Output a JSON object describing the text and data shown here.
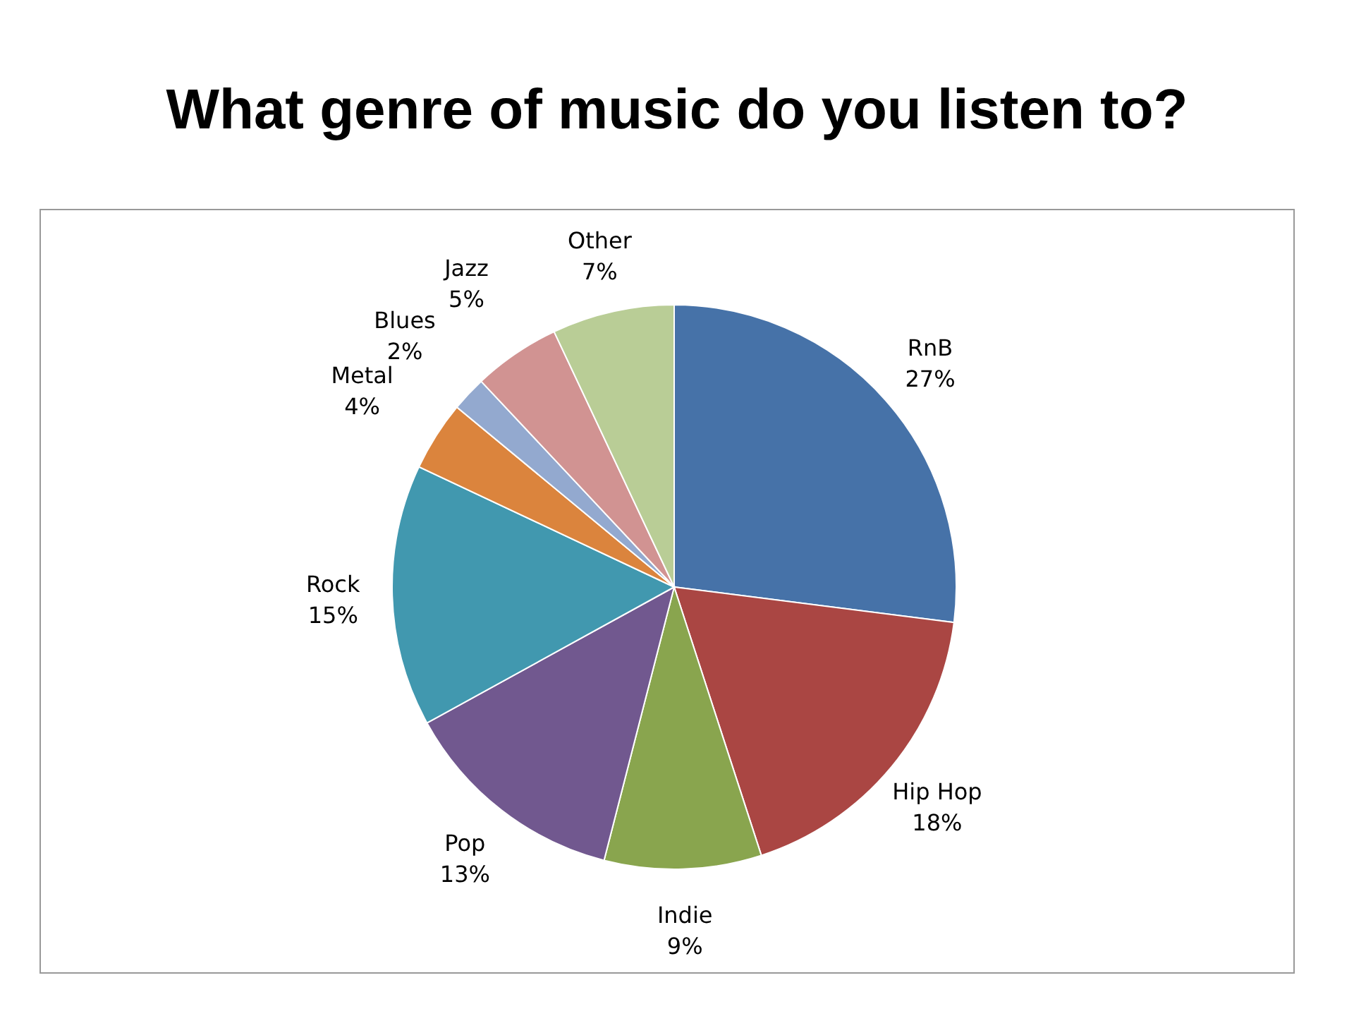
{
  "chart_data": {
    "type": "pie",
    "title": "What genre of music do you listen to?",
    "categories": [
      "RnB",
      "Hip Hop",
      "Indie",
      "Pop",
      "Rock",
      "Metal",
      "Blues",
      "Jazz",
      "Other"
    ],
    "values": [
      27,
      18,
      9,
      13,
      15,
      4,
      2,
      5,
      7
    ],
    "colors": [
      "#4672a8",
      "#aa4643",
      "#89a54e",
      "#71588f",
      "#4198af",
      "#db843d",
      "#93a9cf",
      "#d19392",
      "#b9cd96"
    ],
    "value_labels": [
      "27%",
      "18%",
      "9%",
      "13%",
      "15%",
      "4%",
      "2%",
      "5%",
      "7%"
    ]
  }
}
